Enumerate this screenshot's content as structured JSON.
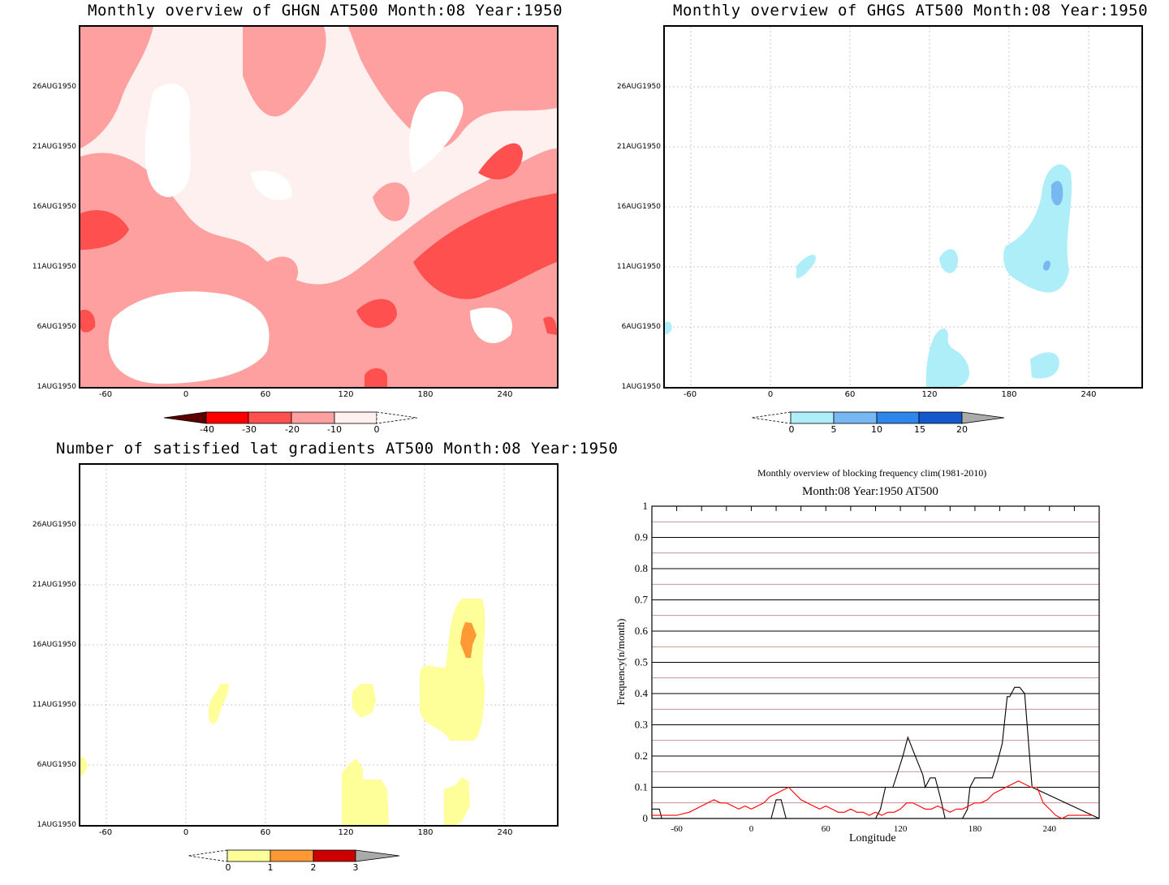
{
  "panels": {
    "ghgn": {
      "title": "Monthly overview of GHGN AT500 Month:08 Year:1950",
      "y_ticks": [
        "26AUG1950",
        "21AUG1950",
        "16AUG1950",
        "11AUG1950",
        "6AUG1950",
        "1AUG1950"
      ],
      "x_ticks": [
        "-60",
        "0",
        "60",
        "120",
        "180",
        "240"
      ],
      "colorbar_labels": [
        "-40",
        "-30",
        "-20",
        "-10",
        "0"
      ],
      "colors": [
        "#5a0000",
        "#ff0000",
        "#ff5050",
        "#ffa0a0",
        "#fff0f0"
      ]
    },
    "ghgs": {
      "title": "Monthly overview of GHGS AT500 Month:08 Year:1950",
      "y_ticks": [
        "26AUG1950",
        "21AUG1950",
        "16AUG1950",
        "11AUG1950",
        "6AUG1950",
        "1AUG1950"
      ],
      "x_ticks": [
        "-60",
        "0",
        "60",
        "120",
        "180",
        "240"
      ],
      "colorbar_labels": [
        "0",
        "5",
        "10",
        "15",
        "20"
      ],
      "colors": [
        "#aeeef8",
        "#78b8f2",
        "#2f86ea",
        "#1358cc",
        "#aaaaaa"
      ]
    },
    "gradients": {
      "title": "Number of satisfied lat gradients AT500 Month:08 Year:1950",
      "y_ticks": [
        "26AUG1950",
        "21AUG1950",
        "16AUG1950",
        "11AUG1950",
        "6AUG1950",
        "1AUG1950"
      ],
      "x_ticks": [
        "-60",
        "0",
        "60",
        "120",
        "180",
        "240"
      ],
      "colorbar_labels": [
        "0",
        "1",
        "2",
        "3"
      ],
      "colors": [
        "#ffff99",
        "#ff9933",
        "#cc0000",
        "#aaaaaa"
      ]
    },
    "frequency": {
      "title": "Monthly overview of blocking frequency clim(1981-2010)",
      "subtitle": "Month:08 Year:1950  AT500",
      "xlabel": "Longitude",
      "ylabel": "Frequency(n/month)",
      "y_ticks": [
        "0",
        "0.1",
        "0.2",
        "0.3",
        "0.4",
        "0.5",
        "0.6",
        "0.7",
        "0.8",
        "0.9",
        "1"
      ],
      "x_ticks": [
        "-60",
        "0",
        "60",
        "120",
        "180",
        "240"
      ]
    }
  },
  "chart_data": [
    {
      "type": "heatmap",
      "title": "Monthly overview of GHGN AT500 Month:08 Year:1950",
      "x_range": [
        -80,
        280
      ],
      "y_range": [
        "1AUG1950",
        "31AUG1950"
      ],
      "levels": [
        -40,
        -30,
        -20,
        -10,
        0
      ]
    },
    {
      "type": "heatmap",
      "title": "Monthly overview of GHGS AT500 Month:08 Year:1950",
      "x_range": [
        -80,
        280
      ],
      "y_range": [
        "1AUG1950",
        "31AUG1950"
      ],
      "levels": [
        0,
        5,
        10,
        15,
        20
      ]
    },
    {
      "type": "heatmap",
      "title": "Number of satisfied lat gradients AT500 Month:08 Year:1950",
      "x_range": [
        -80,
        280
      ],
      "y_range": [
        "1AUG1950",
        "31AUG1950"
      ],
      "levels": [
        0,
        1,
        2,
        3
      ]
    },
    {
      "type": "line",
      "title": "Monthly overview of blocking frequency clim(1981-2010)",
      "subtitle": "Month:08 Year:1950  AT500",
      "xlabel": "Longitude",
      "ylabel": "Frequency(n/month)",
      "xlim": [
        -80,
        280
      ],
      "ylim": [
        0,
        1
      ],
      "series": [
        {
          "color": "#000000",
          "x": [
            -80,
            -74,
            -72,
            -60,
            0,
            16,
            20,
            24,
            28,
            32,
            34,
            100,
            104,
            108,
            110,
            114,
            118,
            122,
            126,
            130,
            134,
            138,
            140,
            144,
            148,
            152,
            156,
            160,
            166,
            170,
            174,
            176,
            180,
            186,
            190,
            194,
            198,
            202,
            206,
            208,
            212,
            216,
            220,
            226,
            280
          ],
          "y": [
            0.03,
            0.03,
            0.0,
            0.0,
            0.0,
            0.0,
            0.06,
            0.06,
            0.0,
            0.0,
            0.0,
            0.0,
            0.03,
            0.1,
            0.1,
            0.1,
            0.15,
            0.2,
            0.26,
            0.22,
            0.18,
            0.14,
            0.1,
            0.13,
            0.13,
            0.07,
            0.0,
            0.0,
            0.0,
            0.0,
            0.03,
            0.1,
            0.13,
            0.13,
            0.13,
            0.13,
            0.18,
            0.24,
            0.39,
            0.39,
            0.42,
            0.42,
            0.4,
            0.1,
            0.0
          ]
        },
        {
          "color": "#ff0000",
          "x": [
            -80,
            -60,
            -50,
            -40,
            -30,
            -25,
            -20,
            -15,
            -10,
            -5,
            0,
            5,
            10,
            15,
            20,
            25,
            30,
            35,
            40,
            45,
            50,
            55,
            60,
            65,
            70,
            75,
            80,
            85,
            90,
            95,
            100,
            105,
            110,
            115,
            120,
            125,
            130,
            135,
            140,
            145,
            150,
            155,
            160,
            165,
            170,
            175,
            180,
            185,
            190,
            195,
            200,
            205,
            210,
            215,
            220,
            225,
            230,
            235,
            240,
            245,
            250,
            255,
            260,
            265,
            270,
            275
          ],
          "y": [
            0.01,
            0.01,
            0.02,
            0.04,
            0.06,
            0.05,
            0.05,
            0.04,
            0.03,
            0.04,
            0.03,
            0.04,
            0.05,
            0.07,
            0.08,
            0.09,
            0.1,
            0.08,
            0.06,
            0.05,
            0.04,
            0.03,
            0.04,
            0.03,
            0.02,
            0.02,
            0.03,
            0.02,
            0.02,
            0.01,
            0.02,
            0.01,
            0.02,
            0.02,
            0.03,
            0.05,
            0.05,
            0.04,
            0.03,
            0.03,
            0.04,
            0.03,
            0.02,
            0.03,
            0.03,
            0.04,
            0.05,
            0.05,
            0.06,
            0.08,
            0.09,
            0.1,
            0.11,
            0.12,
            0.11,
            0.1,
            0.1,
            0.05,
            0.03,
            0.01,
            0.0,
            0.01,
            0.01,
            0.01,
            0.01,
            0.01
          ]
        }
      ]
    }
  ]
}
